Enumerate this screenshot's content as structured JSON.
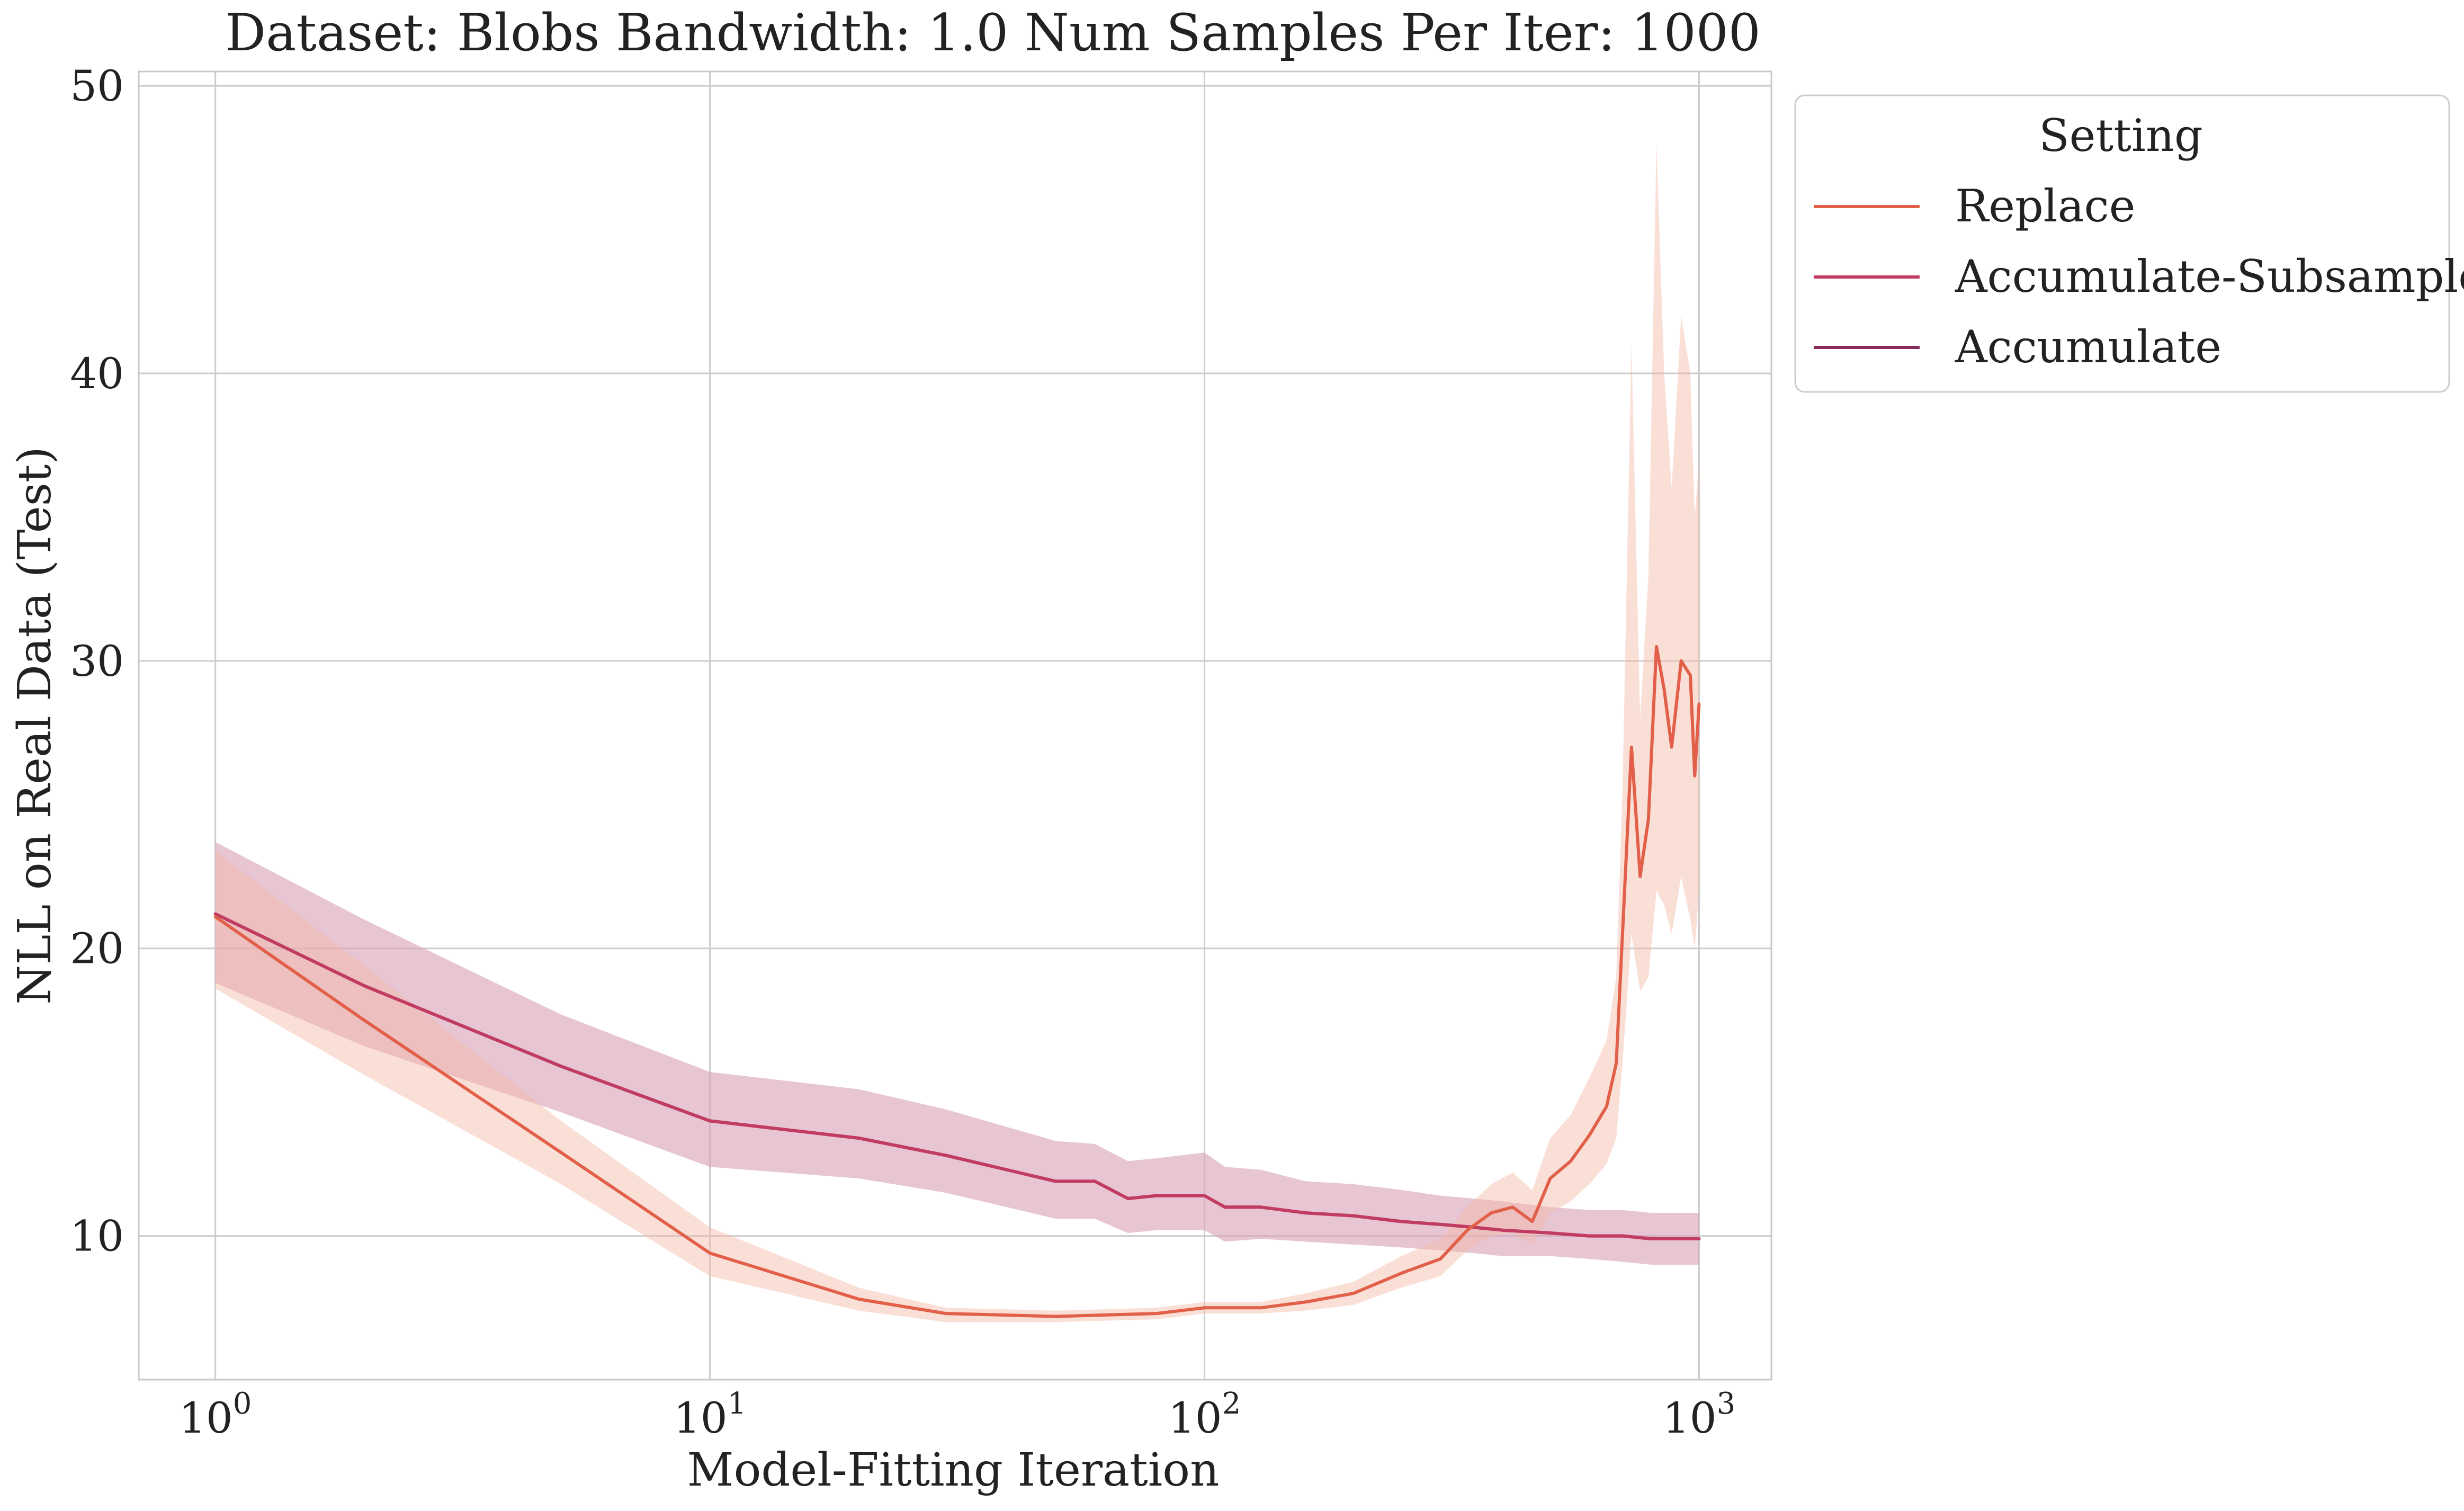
{
  "chart_data": {
    "type": "line",
    "title": "Dataset: Blobs Bandwidth: 1.0 Num Samples Per Iter: 1000",
    "xlabel": "Model-Fitting Iteration",
    "ylabel": "NLL on Real Data (Test)",
    "x_scale": "log",
    "x_range": [
      0.7,
      1400
    ],
    "y_range": [
      5,
      50.5
    ],
    "x_ticks": [
      {
        "base": "10",
        "exp": "0",
        "value": 1
      },
      {
        "base": "10",
        "exp": "1",
        "value": 10
      },
      {
        "base": "10",
        "exp": "2",
        "value": 100
      },
      {
        "base": "10",
        "exp": "3",
        "value": 1000
      }
    ],
    "y_ticks": [
      {
        "label": "10",
        "value": 10
      },
      {
        "label": "20",
        "value": 20
      },
      {
        "label": "30",
        "value": 30
      },
      {
        "label": "40",
        "value": 40
      },
      {
        "label": "50",
        "value": 50
      }
    ],
    "grid": true,
    "legend": {
      "title": "Setting",
      "position": "outside-top-right"
    },
    "series": [
      {
        "name": "Replace",
        "color": "#e2604a",
        "band_color": "#f4b8a6",
        "points": [
          {
            "x": 1,
            "y": 21.1,
            "lo": 18.6,
            "hi": 23.4
          },
          {
            "x": 2,
            "y": 17.5,
            "lo": 15.6,
            "hi": 19.4
          },
          {
            "x": 5,
            "y": 12.9,
            "lo": 11.8,
            "hi": 14.0
          },
          {
            "x": 10,
            "y": 9.4,
            "lo": 8.6,
            "hi": 10.3
          },
          {
            "x": 20,
            "y": 7.8,
            "lo": 7.4,
            "hi": 8.2
          },
          {
            "x": 30,
            "y": 7.3,
            "lo": 7.0,
            "hi": 7.5
          },
          {
            "x": 50,
            "y": 7.2,
            "lo": 7.0,
            "hi": 7.4
          },
          {
            "x": 80,
            "y": 7.3,
            "lo": 7.1,
            "hi": 7.5
          },
          {
            "x": 100,
            "y": 7.5,
            "lo": 7.3,
            "hi": 7.7
          },
          {
            "x": 130,
            "y": 7.5,
            "lo": 7.3,
            "hi": 7.7
          },
          {
            "x": 160,
            "y": 7.7,
            "lo": 7.4,
            "hi": 8.0
          },
          {
            "x": 200,
            "y": 8.0,
            "lo": 7.6,
            "hi": 8.4
          },
          {
            "x": 250,
            "y": 8.7,
            "lo": 8.2,
            "hi": 9.3
          },
          {
            "x": 300,
            "y": 9.2,
            "lo": 8.6,
            "hi": 9.9
          },
          {
            "x": 340,
            "y": 10.2,
            "lo": 9.5,
            "hi": 11.0
          },
          {
            "x": 380,
            "y": 10.8,
            "lo": 10.0,
            "hi": 11.8
          },
          {
            "x": 420,
            "y": 11.0,
            "lo": 10.1,
            "hi": 12.2
          },
          {
            "x": 460,
            "y": 10.5,
            "lo": 9.7,
            "hi": 11.6
          },
          {
            "x": 500,
            "y": 12.0,
            "lo": 10.8,
            "hi": 13.4
          },
          {
            "x": 550,
            "y": 12.6,
            "lo": 11.2,
            "hi": 14.2
          },
          {
            "x": 600,
            "y": 13.5,
            "lo": 11.8,
            "hi": 15.5
          },
          {
            "x": 650,
            "y": 14.5,
            "lo": 12.5,
            "hi": 16.8
          },
          {
            "x": 680,
            "y": 16.0,
            "lo": 13.4,
            "hi": 19.0
          },
          {
            "x": 700,
            "y": 20.5,
            "lo": 16.0,
            "hi": 25.5
          },
          {
            "x": 730,
            "y": 27.0,
            "lo": 20.5,
            "hi": 41.0
          },
          {
            "x": 760,
            "y": 22.5,
            "lo": 18.5,
            "hi": 28.0
          },
          {
            "x": 790,
            "y": 24.5,
            "lo": 19.0,
            "hi": 33.0
          },
          {
            "x": 820,
            "y": 30.5,
            "lo": 22.0,
            "hi": 48.0
          },
          {
            "x": 850,
            "y": 29.0,
            "lo": 21.5,
            "hi": 40.0
          },
          {
            "x": 880,
            "y": 27.0,
            "lo": 20.5,
            "hi": 36.0
          },
          {
            "x": 920,
            "y": 30.0,
            "lo": 22.5,
            "hi": 42.0
          },
          {
            "x": 960,
            "y": 29.5,
            "lo": 21.0,
            "hi": 40.0
          },
          {
            "x": 980,
            "y": 26.0,
            "lo": 20.0,
            "hi": 35.0
          },
          {
            "x": 1000,
            "y": 28.5,
            "lo": 22.0,
            "hi": 37.0
          }
        ]
      },
      {
        "name": "Accumulate-Subsample",
        "color": "#c23c62",
        "band_color": "#e3aebd",
        "points": [
          {
            "x": 1,
            "y": 21.2,
            "lo": 18.8,
            "hi": 23.7
          },
          {
            "x": 2,
            "y": 18.7,
            "lo": 16.6,
            "hi": 21.0
          },
          {
            "x": 5,
            "y": 15.9,
            "lo": 14.3,
            "hi": 17.7
          },
          {
            "x": 10,
            "y": 14.0,
            "lo": 12.4,
            "hi": 15.7
          },
          {
            "x": 20,
            "y": 13.4,
            "lo": 12.0,
            "hi": 15.1
          },
          {
            "x": 30,
            "y": 12.8,
            "lo": 11.5,
            "hi": 14.4
          },
          {
            "x": 50,
            "y": 11.9,
            "lo": 10.6,
            "hi": 13.3
          },
          {
            "x": 60,
            "y": 11.9,
            "lo": 10.6,
            "hi": 13.2
          },
          {
            "x": 70,
            "y": 11.3,
            "lo": 10.1,
            "hi": 12.6
          },
          {
            "x": 80,
            "y": 11.4,
            "lo": 10.2,
            "hi": 12.7
          },
          {
            "x": 100,
            "y": 11.4,
            "lo": 10.2,
            "hi": 12.9
          },
          {
            "x": 110,
            "y": 11.0,
            "lo": 9.8,
            "hi": 12.4
          },
          {
            "x": 130,
            "y": 11.0,
            "lo": 9.9,
            "hi": 12.3
          },
          {
            "x": 160,
            "y": 10.8,
            "lo": 9.8,
            "hi": 11.9
          },
          {
            "x": 200,
            "y": 10.7,
            "lo": 9.7,
            "hi": 11.8
          },
          {
            "x": 250,
            "y": 10.5,
            "lo": 9.6,
            "hi": 11.6
          },
          {
            "x": 300,
            "y": 10.4,
            "lo": 9.5,
            "hi": 11.4
          },
          {
            "x": 350,
            "y": 10.3,
            "lo": 9.4,
            "hi": 11.3
          },
          {
            "x": 400,
            "y": 10.2,
            "lo": 9.3,
            "hi": 11.2
          },
          {
            "x": 500,
            "y": 10.1,
            "lo": 9.3,
            "hi": 11.0
          },
          {
            "x": 600,
            "y": 10.0,
            "lo": 9.2,
            "hi": 10.9
          },
          {
            "x": 700,
            "y": 10.0,
            "lo": 9.1,
            "hi": 10.9
          },
          {
            "x": 800,
            "y": 9.9,
            "lo": 9.0,
            "hi": 10.8
          },
          {
            "x": 900,
            "y": 9.9,
            "lo": 9.0,
            "hi": 10.8
          },
          {
            "x": 1000,
            "y": 9.9,
            "lo": 9.0,
            "hi": 10.8
          }
        ]
      },
      {
        "name": "Accumulate",
        "color": "#8a2c5e",
        "band_color": "#c993b0",
        "points": [
          {
            "x": 1,
            "y": 21.2,
            "lo": 18.8,
            "hi": 23.7
          },
          {
            "x": 2,
            "y": 18.7,
            "lo": 16.6,
            "hi": 21.0
          },
          {
            "x": 5,
            "y": 15.9,
            "lo": 14.3,
            "hi": 17.7
          },
          {
            "x": 10,
            "y": 14.0,
            "lo": 12.4,
            "hi": 15.7
          },
          {
            "x": 20,
            "y": 13.4,
            "lo": 12.0,
            "hi": 15.1
          },
          {
            "x": 30,
            "y": 12.8,
            "lo": 11.5,
            "hi": 14.4
          },
          {
            "x": 50,
            "y": 11.9,
            "lo": 10.6,
            "hi": 13.3
          },
          {
            "x": 60,
            "y": 11.9,
            "lo": 10.6,
            "hi": 13.2
          },
          {
            "x": 70,
            "y": 11.3,
            "lo": 10.1,
            "hi": 12.6
          },
          {
            "x": 80,
            "y": 11.4,
            "lo": 10.2,
            "hi": 12.7
          },
          {
            "x": 100,
            "y": 11.4,
            "lo": 10.2,
            "hi": 12.9
          },
          {
            "x": 110,
            "y": 11.0,
            "lo": 9.8,
            "hi": 12.4
          },
          {
            "x": 130,
            "y": 11.0,
            "lo": 9.9,
            "hi": 12.3
          },
          {
            "x": 160,
            "y": 10.8,
            "lo": 9.8,
            "hi": 11.9
          },
          {
            "x": 200,
            "y": 10.7,
            "lo": 9.7,
            "hi": 11.8
          },
          {
            "x": 250,
            "y": 10.5,
            "lo": 9.6,
            "hi": 11.6
          },
          {
            "x": 300,
            "y": 10.4,
            "lo": 9.5,
            "hi": 11.4
          },
          {
            "x": 350,
            "y": 10.3,
            "lo": 9.4,
            "hi": 11.3
          },
          {
            "x": 400,
            "y": 10.2,
            "lo": 9.3,
            "hi": 11.2
          },
          {
            "x": 500,
            "y": 10.1,
            "lo": 9.3,
            "hi": 11.0
          },
          {
            "x": 600,
            "y": 10.0,
            "lo": 9.2,
            "hi": 10.9
          },
          {
            "x": 700,
            "y": 10.0,
            "lo": 9.1,
            "hi": 10.9
          },
          {
            "x": 800,
            "y": 9.9,
            "lo": 9.0,
            "hi": 10.8
          },
          {
            "x": 900,
            "y": 9.9,
            "lo": 9.0,
            "hi": 10.8
          },
          {
            "x": 1000,
            "y": 9.9,
            "lo": 9.0,
            "hi": 10.8
          }
        ]
      }
    ]
  }
}
